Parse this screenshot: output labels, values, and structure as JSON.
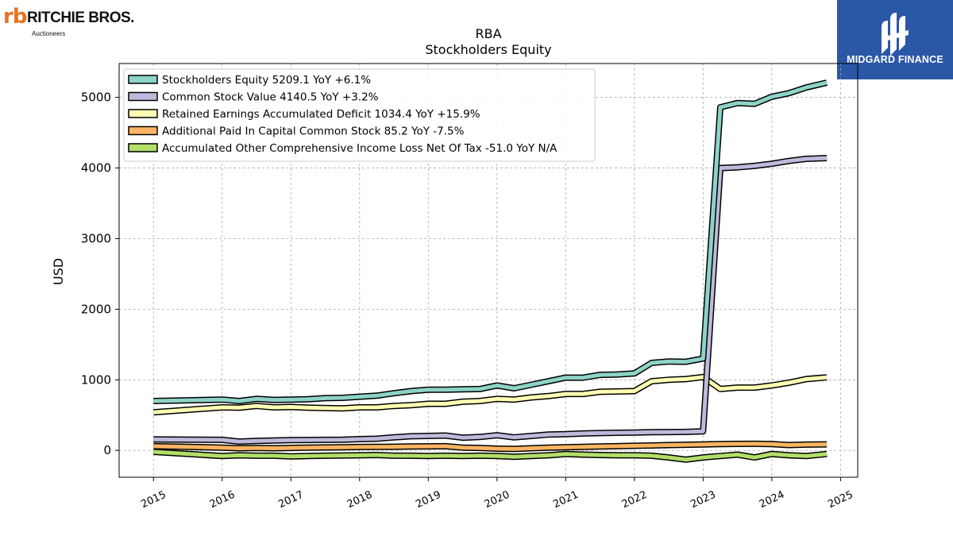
{
  "branding": {
    "left_logo_mark": "rb",
    "left_logo_name": "RITCHIE BROS.",
    "left_logo_sub": "Auctioneers",
    "right_logo_name": "MIDGARD FINANCE",
    "right_bg_color": "#2b57a7"
  },
  "chart_data": {
    "type": "line",
    "title": "RBA",
    "subtitle": "Stockholders  Equity",
    "xlabel": "",
    "ylabel": "USD",
    "xlim": [
      2014.5,
      2025.25
    ],
    "ylim": [
      -380,
      5480
    ],
    "x_ticks": [
      "2015",
      "2016",
      "2017",
      "2018",
      "2019",
      "2020",
      "2021",
      "2022",
      "2023",
      "2024",
      "2025"
    ],
    "y_ticks": [
      "0",
      "1000",
      "2000",
      "3000",
      "4000",
      "5000"
    ],
    "grid": true,
    "legend_position": "top-left",
    "series": [
      {
        "name": "Stockholders Equity",
        "legend_label": "Stockholders Equity  5209.1 YoY +6.1%",
        "color": "#8dd3c7",
        "x": [
          2015.0,
          2016.0,
          2016.25,
          2016.5,
          2016.75,
          2017.0,
          2017.25,
          2017.5,
          2017.75,
          2018.0,
          2018.25,
          2018.5,
          2018.75,
          2019.0,
          2019.25,
          2019.5,
          2019.75,
          2020.0,
          2020.25,
          2020.5,
          2020.75,
          2021.0,
          2021.25,
          2021.5,
          2021.75,
          2022.0,
          2022.25,
          2022.5,
          2022.75,
          2023.0,
          2023.25,
          2023.5,
          2023.75,
          2024.0,
          2024.25,
          2024.5,
          2024.8
        ],
        "y": [
          700,
          720,
          700,
          730,
          715,
          720,
          725,
          740,
          745,
          760,
          775,
          810,
          840,
          860,
          860,
          865,
          870,
          920,
          880,
          930,
          980,
          1030,
          1030,
          1070,
          1075,
          1090,
          1240,
          1260,
          1255,
          1300,
          4860,
          4920,
          4910,
          5010,
          5060,
          5140,
          5209.1
        ]
      },
      {
        "name": "Common Stock Value",
        "legend_label": "Common Stock Value  4140.5 YoY +3.2%",
        "color": "#bebada",
        "x": [
          2015.0,
          2016.0,
          2016.25,
          2016.5,
          2016.75,
          2017.0,
          2017.25,
          2017.5,
          2017.75,
          2018.0,
          2018.25,
          2018.5,
          2018.75,
          2019.0,
          2019.25,
          2019.5,
          2019.75,
          2020.0,
          2020.25,
          2020.5,
          2020.75,
          2021.0,
          2021.25,
          2021.5,
          2021.75,
          2022.0,
          2022.25,
          2022.5,
          2022.75,
          2023.0,
          2023.25,
          2023.5,
          2023.75,
          2024.0,
          2024.25,
          2024.5,
          2024.8
        ],
        "y": [
          155,
          150,
          125,
          135,
          140,
          145,
          148,
          150,
          152,
          160,
          165,
          185,
          200,
          205,
          210,
          180,
          190,
          215,
          185,
          205,
          225,
          230,
          240,
          245,
          250,
          252,
          258,
          260,
          262,
          270,
          4000,
          4010,
          4030,
          4060,
          4100,
          4130,
          4140.5
        ]
      },
      {
        "name": "Retained Earnings Accumulated Deficit",
        "legend_label": "Retained Earnings Accumulated Deficit  1034.4 YoY +15.9%",
        "color": "#ffffb3",
        "x": [
          2015.0,
          2016.0,
          2016.25,
          2016.5,
          2016.75,
          2017.0,
          2017.25,
          2017.5,
          2017.75,
          2018.0,
          2018.25,
          2018.5,
          2018.75,
          2019.0,
          2019.25,
          2019.5,
          2019.75,
          2020.0,
          2020.25,
          2020.5,
          2020.75,
          2021.0,
          2021.25,
          2021.5,
          2021.75,
          2022.0,
          2022.25,
          2022.5,
          2022.75,
          2023.0,
          2023.25,
          2023.5,
          2023.75,
          2024.0,
          2024.25,
          2024.5,
          2024.8
        ],
        "y": [
          540,
          610,
          605,
          630,
          610,
          615,
          605,
          600,
          595,
          610,
          610,
          630,
          640,
          660,
          660,
          690,
          700,
          730,
          720,
          750,
          770,
          800,
          800,
          830,
          835,
          840,
          980,
          1000,
          1010,
          1040,
          870,
          890,
          890,
          920,
          960,
          1010,
          1034.4
        ]
      },
      {
        "name": "Additional Paid In Capital Common Stock",
        "legend_label": "Additional Paid In Capital Common Stock  85.2 YoY -7.5%",
        "color": "#fdb462",
        "x": [
          2015.0,
          2016.0,
          2016.25,
          2016.5,
          2016.75,
          2017.0,
          2017.25,
          2017.5,
          2017.75,
          2018.0,
          2018.25,
          2018.5,
          2018.75,
          2019.0,
          2019.25,
          2019.5,
          2019.75,
          2020.0,
          2020.25,
          2020.5,
          2020.75,
          2021.0,
          2021.25,
          2021.5,
          2021.75,
          2022.0,
          2022.25,
          2022.5,
          2022.75,
          2023.0,
          2023.25,
          2023.5,
          2023.75,
          2024.0,
          2024.25,
          2024.5,
          2024.8
        ],
        "y": [
          60,
          40,
          30,
          35,
          30,
          35,
          40,
          42,
          45,
          48,
          50,
          52,
          55,
          58,
          60,
          40,
          35,
          25,
          20,
          30,
          40,
          45,
          50,
          55,
          60,
          65,
          70,
          75,
          80,
          85,
          90,
          92,
          93,
          90,
          75,
          82,
          85.2
        ]
      },
      {
        "name": "Accumulated Other Comprehensive Income Loss Net Of Tax",
        "legend_label": "Accumulated Other Comprehensive Income Loss Net Of Tax  -51.0 YoY N/A",
        "color": "#b3de69",
        "x": [
          2015.0,
          2016.0,
          2016.25,
          2016.5,
          2016.75,
          2017.0,
          2017.25,
          2017.5,
          2017.75,
          2018.0,
          2018.25,
          2018.5,
          2018.75,
          2019.0,
          2019.25,
          2019.5,
          2019.75,
          2020.0,
          2020.25,
          2020.5,
          2020.75,
          2021.0,
          2021.25,
          2021.5,
          2021.75,
          2022.0,
          2022.25,
          2022.5,
          2022.75,
          2023.0,
          2023.25,
          2023.5,
          2023.75,
          2024.0,
          2024.25,
          2024.5,
          2024.8
        ],
        "y": [
          -20,
          -80,
          -70,
          -75,
          -75,
          -85,
          -80,
          -75,
          -72,
          -70,
          -65,
          -75,
          -75,
          -80,
          -75,
          -80,
          -75,
          -80,
          -90,
          -80,
          -70,
          -50,
          -60,
          -65,
          -70,
          -70,
          -75,
          -100,
          -130,
          -100,
          -80,
          -60,
          -100,
          -50,
          -70,
          -80,
          -51.0
        ]
      }
    ]
  }
}
